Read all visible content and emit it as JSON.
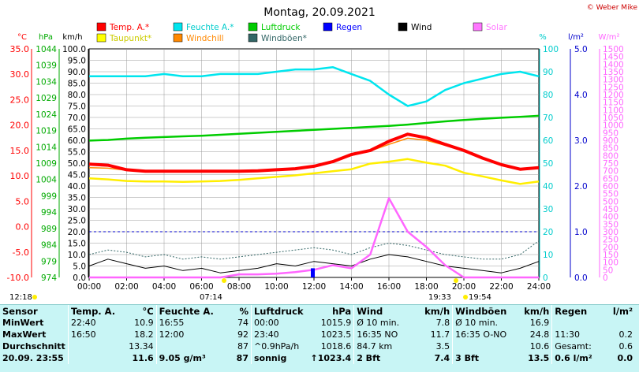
{
  "header": {
    "title": "Montag, 20.09.2021",
    "credit": "© Weber Mike"
  },
  "legend": [
    {
      "label": "Temp. A.*",
      "color": "#ff0000"
    },
    {
      "label": "Feuchte A.*",
      "color": "#00e5ee"
    },
    {
      "label": "Luftdruck",
      "color": "#00cc00"
    },
    {
      "label": "Regen",
      "color": "#0000ff"
    },
    {
      "label": "Wind",
      "color": "#000000"
    },
    {
      "label": "Solar",
      "color": "#ff77ff"
    },
    {
      "label": "Taupunkt*",
      "color": "#ffff00"
    },
    {
      "label": "Windchill",
      "color": "#ff8800"
    },
    {
      "label": "Windböen*",
      "color": "#336666"
    }
  ],
  "axes": {
    "units": {
      "temp": "°C",
      "hpa": "hPa",
      "kmh": "km/h",
      "pct": "%",
      "rain": "l/m²",
      "solar": "W/m²"
    },
    "temp_ticks": [
      "35.0",
      "30.0",
      "25.0",
      "20.0",
      "15.0",
      "10.0",
      "5.0",
      "0.0",
      "-5.0",
      "-10.0"
    ],
    "hpa_ticks": [
      "1044",
      "1039",
      "1034",
      "1029",
      "1024",
      "1019",
      "1014",
      "1009",
      "1004",
      "999",
      "994",
      "989",
      "984",
      "979",
      "974"
    ],
    "kmh_ticks": [
      "100.0",
      "95.0",
      "90.0",
      "85.0",
      "80.0",
      "75.0",
      "70.0",
      "65.0",
      "60.0",
      "55.0",
      "50.0",
      "45.0",
      "40.0",
      "35.0",
      "30.0",
      "25.0",
      "20.0",
      "15.0",
      "10.0",
      "5.0",
      "0.0"
    ],
    "pct_ticks": [
      "100",
      "90",
      "80",
      "70",
      "60",
      "50",
      "40",
      "30",
      "20",
      "10",
      "0"
    ],
    "rain_ticks": [
      "5.0",
      "4.0",
      "3.0",
      "2.0",
      "1.0",
      "0.0"
    ],
    "solar_ticks": [
      "1500",
      "1450",
      "1400",
      "1350",
      "1300",
      "1250",
      "1200",
      "1150",
      "1100",
      "1050",
      "1000",
      "950",
      "900",
      "850",
      "800",
      "750",
      "700",
      "650",
      "600",
      "550",
      "500",
      "450",
      "400",
      "350",
      "300",
      "250",
      "200",
      "150",
      "100",
      "50",
      "0"
    ],
    "x_ticks": [
      "00:00",
      "02:00",
      "04:00",
      "06:00",
      "08:00",
      "10:00",
      "12:00",
      "14:00",
      "16:00",
      "18:00",
      "20:00",
      "22:00",
      "24:00"
    ]
  },
  "sun": {
    "moonrise": "12:18",
    "sunrise": "07:14",
    "sunset": "19:33",
    "moon": "19:54"
  },
  "chart_data": {
    "type": "line",
    "x_hours": [
      0,
      1,
      2,
      3,
      4,
      5,
      6,
      7,
      8,
      9,
      10,
      11,
      12,
      13,
      14,
      15,
      16,
      17,
      18,
      19,
      20,
      21,
      22,
      23,
      24
    ],
    "series": [
      {
        "name": "Temp. A.*",
        "unit": "°C",
        "values": [
          12.3,
          12.1,
          11.2,
          10.9,
          10.9,
          10.9,
          10.9,
          10.9,
          10.9,
          11.0,
          11.2,
          11.4,
          11.9,
          12.8,
          14.2,
          15.0,
          16.8,
          18.2,
          17.5,
          16.2,
          15.0,
          13.5,
          12.2,
          11.3,
          11.6
        ]
      },
      {
        "name": "Taupunkt*",
        "unit": "°C",
        "values": [
          9.5,
          9.3,
          9.0,
          8.9,
          8.9,
          8.8,
          8.9,
          9.0,
          9.2,
          9.5,
          9.8,
          10.1,
          10.5,
          10.9,
          11.3,
          12.4,
          12.8,
          13.3,
          12.6,
          12.0,
          10.6,
          9.9,
          9.1,
          8.4,
          8.9
        ]
      },
      {
        "name": "Windchill",
        "unit": "°C",
        "values": [
          11.6,
          11.5,
          11.1,
          10.9,
          10.9,
          10.9,
          10.9,
          10.9,
          10.9,
          11.0,
          11.2,
          11.4,
          11.9,
          12.7,
          14.0,
          14.9,
          16.2,
          17.4,
          17.0,
          16.0,
          15.0,
          13.5,
          12.2,
          11.3,
          11.6
        ]
      },
      {
        "name": "Feuchte A.*",
        "unit": "%",
        "values": [
          88,
          88,
          88,
          88,
          89,
          88,
          88,
          89,
          89,
          89,
          90,
          91,
          91,
          92,
          89,
          86,
          80,
          75,
          77,
          82,
          85,
          87,
          89,
          90,
          88
        ]
      },
      {
        "name": "Luftdruck",
        "unit": "hPa",
        "values": [
          1015.9,
          1016.1,
          1016.5,
          1016.8,
          1017.0,
          1017.2,
          1017.4,
          1017.7,
          1018.0,
          1018.3,
          1018.6,
          1018.9,
          1019.2,
          1019.5,
          1019.8,
          1020.1,
          1020.4,
          1020.8,
          1021.3,
          1021.8,
          1022.2,
          1022.6,
          1022.9,
          1023.2,
          1023.5
        ]
      },
      {
        "name": "Wind",
        "unit": "km/h",
        "values": [
          5,
          8,
          6,
          4,
          5,
          3,
          4,
          2,
          3,
          4,
          6,
          5,
          7,
          6,
          5,
          8,
          10,
          9,
          7,
          5,
          4,
          3,
          2,
          4,
          7
        ]
      },
      {
        "name": "Windböen*",
        "unit": "km/h",
        "values": [
          10,
          12,
          11,
          9,
          10,
          8,
          9,
          8,
          9,
          10,
          11,
          12,
          13,
          12,
          10,
          13,
          15,
          14,
          12,
          10,
          9,
          8,
          8,
          10,
          16
        ]
      },
      {
        "name": "Solar",
        "unit": "W/m²",
        "values": [
          0,
          0,
          0,
          0,
          0,
          0,
          0,
          0,
          20,
          20,
          25,
          35,
          50,
          80,
          60,
          150,
          520,
          300,
          200,
          80,
          0,
          0,
          0,
          0,
          0
        ]
      },
      {
        "name": "Regen",
        "unit": "l/m²",
        "values": [
          0,
          0,
          0,
          0,
          0,
          0,
          0,
          0,
          0,
          0,
          0,
          0,
          0.2,
          0,
          0,
          0,
          0,
          0,
          0,
          0,
          0,
          0,
          0,
          0,
          0
        ]
      }
    ]
  },
  "table": {
    "headers": [
      "Sensor",
      "Temp. A.",
      "°C",
      "Feuchte A.",
      "%",
      "Luftdruck",
      "hPa",
      "Wind",
      "km/h",
      "Windböen",
      "km/h",
      "Regen",
      "l/m²"
    ],
    "rows": [
      [
        "MinWert",
        "22:40",
        "10.9",
        "16:55",
        "74",
        "00:00",
        "1015.9",
        "Ø 10 min.",
        "7.8",
        "Ø 10 min.",
        "16.9",
        "",
        ""
      ],
      [
        "MaxWert",
        "16:50",
        "18.2",
        "12:00",
        "92",
        "23:40",
        "1023.5",
        "16:35   NO",
        "11.7",
        "16:35   O-NO",
        "24.8",
        "11:30",
        "0.2"
      ],
      [
        "Durchschnitt",
        "",
        "13.34",
        "",
        "87",
        "^0.9hPa/h",
        "1018.6",
        "84.7 km",
        "3.5",
        "",
        "10.6",
        "Gesamt:",
        "0.6"
      ],
      [
        "20.09.  23:55",
        "",
        "11.6",
        "9.05 g/m³",
        "87",
        "sonnig",
        "↑1023.4",
        "2 Bft",
        "7.4",
        "3 Bft",
        "13.5",
        "0.6 l/m²",
        "0.0"
      ]
    ]
  }
}
